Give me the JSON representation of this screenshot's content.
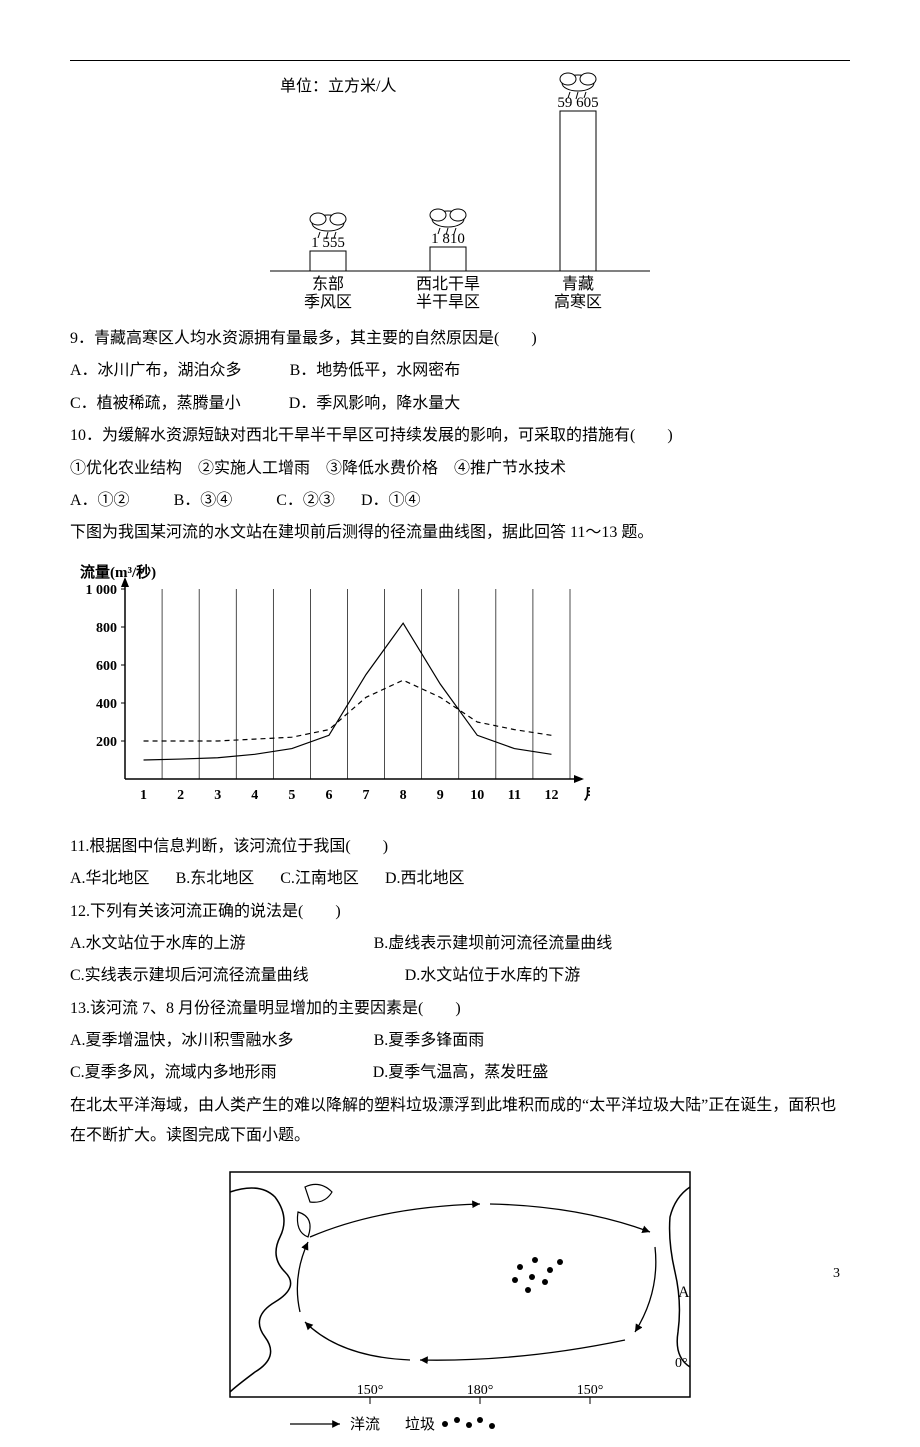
{
  "page_number": "3",
  "chart1": {
    "unit_label": "单位：立方米/人",
    "bg": "#ffffff",
    "border": "#000000",
    "bar_fill": "#ffffff",
    "bars": [
      {
        "region": "东部",
        "sub": "季风区",
        "height": 20,
        "value": "1 555"
      },
      {
        "region": "西北干旱",
        "sub": "半干旱区",
        "height": 24,
        "value": "1 810"
      },
      {
        "region": "青藏",
        "sub": "高寒区",
        "height": 160,
        "value": "59 605"
      }
    ]
  },
  "q9": {
    "text": "9．青藏高寒区人均水资源拥有量最多，其主要的自然原因是(　　)",
    "optA": "A．冰川广布，湖泊众多",
    "optB": "B．地势低平，水网密布",
    "optC": "C．植被稀疏，蒸腾量小",
    "optD": "D．季风影响，降水量大"
  },
  "q10": {
    "text": "10．为缓解水资源短缺对西北干旱半干旱区可持续发展的影响，可采取的措施有(　　)",
    "items": "①优化农业结构　②实施人工增雨　③降低水费价格　④推广节水技术",
    "optA": "A．①②",
    "optB": "B．③④",
    "optC": "C．②③",
    "optD": "D．①④"
  },
  "lead2": "下图为我国某河流的水文站在建坝前后测得的径流量曲线图，据此回答 11～13 题。",
  "chart2": {
    "ylabel": "流量(m³/秒)",
    "xlabel": "月",
    "xticks": [
      "1",
      "2",
      "3",
      "4",
      "5",
      "6",
      "7",
      "8",
      "9",
      "10",
      "11",
      "12"
    ],
    "yticks": [
      200,
      400,
      600,
      800,
      1000
    ],
    "ylim": [
      0,
      1000
    ],
    "solid_color": "#000000",
    "dashed_color": "#000000",
    "bg": "#ffffff",
    "grid": "#000000",
    "line_width": 1.2,
    "solid": [
      100,
      105,
      112,
      130,
      160,
      230,
      550,
      820,
      500,
      230,
      160,
      130
    ],
    "dashed": [
      200,
      200,
      200,
      210,
      220,
      260,
      430,
      520,
      430,
      300,
      260,
      230
    ]
  },
  "q11": {
    "text": "11.根据图中信息判断，该河流位于我国(　　)",
    "optA": "A.华北地区",
    "optB": "B.东北地区",
    "optC": "C.江南地区",
    "optD": "D.西北地区"
  },
  "q12": {
    "text": "12.下列有关该河流正确的说法是(　　)",
    "optA": "A.水文站位于水库的上游",
    "optB": "B.虚线表示建坝前河流径流量曲线",
    "optC": "C.实线表示建坝后河流径流量曲线",
    "optD": "D.水文站位于水库的下游"
  },
  "q13": {
    "text": "13.该河流 7、8 月份径流量明显增加的主要因素是(　　)",
    "optA": "A.夏季增温快，冰川积雪融水多",
    "optB": "B.夏季多锋面雨",
    "optC": "C.夏季多风，流域内多地形雨",
    "optD": "D.夏季气温高，蒸发旺盛"
  },
  "lead3": "在北太平洋海域，由人类产生的难以降解的塑料垃圾漂浮到此堆积而成的“太平洋垃圾大陆”正在诞生，面积也在不断扩大。读图完成下面小题。",
  "chart3": {
    "eq_label": "0°",
    "lon_labels": [
      "150°",
      "180°",
      "150°"
    ],
    "legend_current": "洋流",
    "legend_garbage": "垃圾",
    "border": "#000000",
    "bg": "#ffffff"
  }
}
